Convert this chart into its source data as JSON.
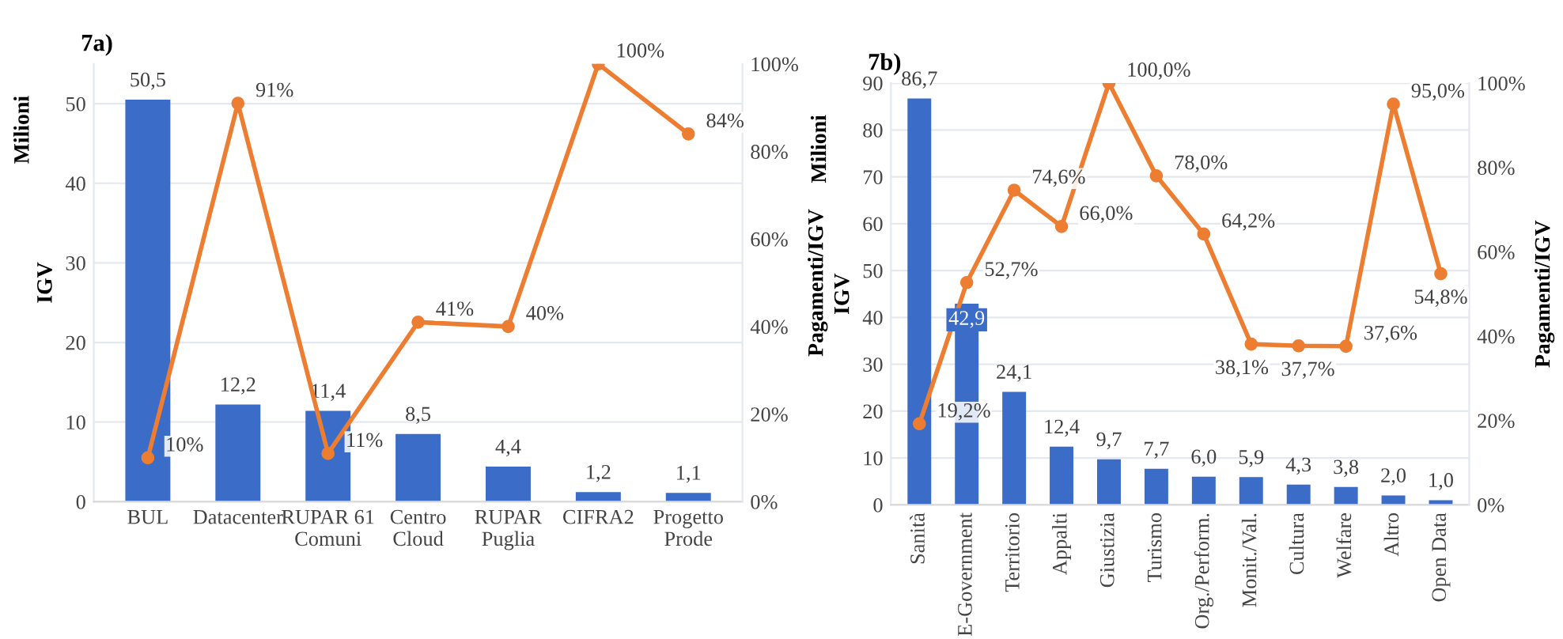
{
  "chart_data": [
    {
      "type": "bar",
      "title": "7a)",
      "ylabel": "IGV",
      "y2label": "Pagamenti/IGV",
      "annotations": [
        "Milioni"
      ],
      "categories": [
        "BUL",
        "Datacenter",
        "RUPAR 61 Comuni",
        "Centro Cloud",
        "RUPAR Puglia",
        "CIFRA2",
        "Progetto Prode"
      ],
      "ylim": [
        0,
        55
      ],
      "yticks": [
        0,
        10,
        20,
        30,
        40,
        50
      ],
      "y2lim": [
        0,
        100
      ],
      "y2ticks": [
        {
          "value": 0,
          "label": "0%"
        },
        {
          "value": 20,
          "label": "20%"
        },
        {
          "value": 40,
          "label": "40%"
        },
        {
          "value": 60,
          "label": "60%"
        },
        {
          "value": 80,
          "label": "80%"
        },
        {
          "value": 100,
          "label": "100%"
        }
      ],
      "grid": "y",
      "marker": "circle",
      "series": [
        {
          "type": "bar",
          "color": "#3b6cc7",
          "values": [
            50.5,
            12.2,
            11.4,
            8.5,
            4.4,
            1.2,
            1.1
          ],
          "value_labels": [
            "50,5",
            "12,2",
            "11,4",
            "8,5",
            "4,4",
            "1,2",
            "1,1"
          ]
        },
        {
          "type": "line",
          "axis": "y2",
          "color": "#ed7d31",
          "values": [
            10,
            91,
            11,
            41,
            40,
            100,
            84
          ],
          "value_labels": [
            "10%",
            "91%",
            "11%",
            "41%",
            "40%",
            "100%",
            "84%"
          ]
        }
      ]
    },
    {
      "type": "bar",
      "title": "7b)",
      "ylabel": "IGV",
      "y2label": "Pagamenti/IGV",
      "annotations": [
        "Milioni"
      ],
      "categories": [
        "Sanità",
        "E-Government",
        "Territorio",
        "Appalti",
        "Giustizia",
        "Turismo",
        "Org./Perform.",
        "Monit./Val.",
        "Cultura",
        "Welfare",
        "Altro",
        "Open Data"
      ],
      "ylim": [
        0,
        90
      ],
      "yticks": [
        0,
        10,
        20,
        30,
        40,
        50,
        60,
        70,
        80,
        90
      ],
      "y2lim": [
        0,
        100
      ],
      "y2ticks": [
        {
          "value": 0,
          "label": "0%"
        },
        {
          "value": 20,
          "label": "20%"
        },
        {
          "value": 40,
          "label": "40%"
        },
        {
          "value": 60,
          "label": "60%"
        },
        {
          "value": 80,
          "label": "80%"
        },
        {
          "value": 100,
          "label": "100%"
        }
      ],
      "grid": "y",
      "marker": "circle",
      "series": [
        {
          "type": "bar",
          "color": "#3b6cc7",
          "values": [
            86.7,
            42.9,
            24.1,
            12.4,
            9.7,
            7.7,
            6.0,
            5.9,
            4.3,
            3.8,
            2.0,
            1.0
          ],
          "value_labels": [
            "86,7",
            "42,9",
            "24,1",
            "12,4",
            "9,7",
            "7,7",
            "6,0",
            "5,9",
            "4,3",
            "3,8",
            "2,0",
            "1,0"
          ]
        },
        {
          "type": "line",
          "axis": "y2",
          "color": "#ed7d31",
          "values": [
            19.2,
            52.7,
            74.6,
            66.0,
            100.0,
            78.0,
            64.2,
            38.1,
            37.7,
            37.6,
            95.0,
            54.8
          ],
          "value_labels": [
            "19,2%",
            "52,7%",
            "74,6%",
            "66,0%",
            "100,0%",
            "78,0%",
            "64,2%",
            "38,1%",
            "37,7%",
            "37,6%",
            "95,0%",
            "54,8%"
          ]
        }
      ]
    }
  ]
}
